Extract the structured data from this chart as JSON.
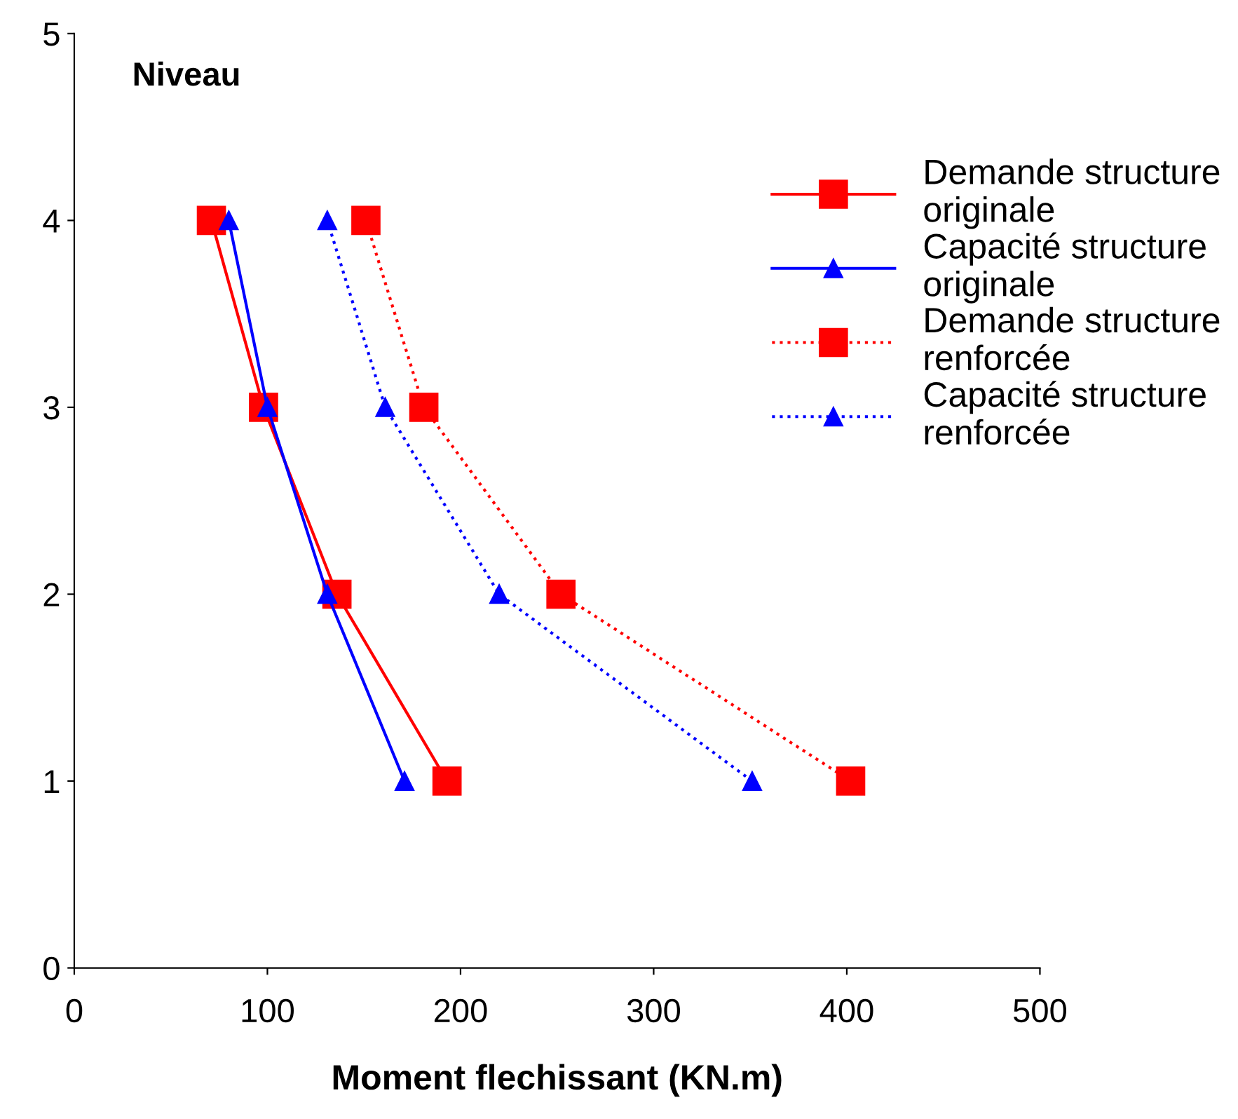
{
  "chart_data": {
    "type": "line",
    "xlabel": "Moment flechissant (KN.m)",
    "ylabel": "Niveau",
    "xlim": [
      0,
      500
    ],
    "xticks": [
      0,
      100,
      200,
      300,
      400,
      500
    ],
    "ylim": [
      0,
      5
    ],
    "yticks": [
      0,
      1,
      2,
      3,
      4,
      5
    ],
    "grid": false,
    "legend": "top right",
    "series": [
      {
        "name": "Demande structure\noriginale",
        "color": "#ff0000",
        "marker": "square",
        "line_style": "solid",
        "x": [
          193,
          136,
          98,
          71
        ],
        "values": [
          1,
          2,
          3,
          4
        ]
      },
      {
        "name": "Capacité structure\noriginale",
        "color": "#0000ff",
        "marker": "triangle",
        "line_style": "solid",
        "x": [
          171,
          131,
          100,
          80
        ],
        "values": [
          1,
          2,
          3,
          4
        ]
      },
      {
        "name": "Demande structure\nrenforcée",
        "color": "#ff0000",
        "marker": "square",
        "line_style": "dotted",
        "x": [
          402,
          252,
          181,
          151
        ],
        "values": [
          1,
          2,
          3,
          4
        ]
      },
      {
        "name": "Capacité structure\nrenforcée",
        "color": "#0000ff",
        "marker": "triangle",
        "line_style": "dotted",
        "x": [
          351,
          220,
          161,
          131
        ],
        "values": [
          1,
          2,
          3,
          4
        ]
      }
    ]
  }
}
